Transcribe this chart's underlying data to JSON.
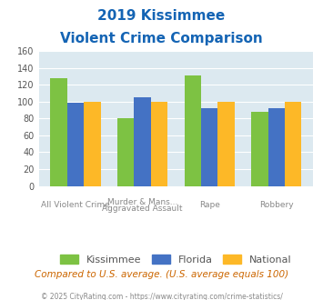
{
  "title_line1": "2019 Kissimmee",
  "title_line2": "Violent Crime Comparison",
  "cat_labels_top": [
    "",
    "Murder & Mans...",
    "",
    ""
  ],
  "cat_labels_bottom": [
    "All Violent Crime",
    "Aggravated Assault",
    "Rape",
    "Robbery"
  ],
  "kissimmee": [
    128,
    80,
    131,
    88
  ],
  "florida": [
    99,
    105,
    92,
    92
  ],
  "national": [
    100,
    100,
    100,
    100
  ],
  "color_kissimmee": "#7dc243",
  "color_florida": "#4472c4",
  "color_national": "#fdb827",
  "ylim": [
    0,
    160
  ],
  "yticks": [
    0,
    20,
    40,
    60,
    80,
    100,
    120,
    140,
    160
  ],
  "background_color": "#dce9f0",
  "title_color": "#1464b4",
  "subtitle_note": "Compared to U.S. average. (U.S. average equals 100)",
  "subtitle_note_color": "#cc6600",
  "footer": "© 2025 CityRating.com - https://www.cityrating.com/crime-statistics/",
  "footer_color": "#888888",
  "legend_labels": [
    "Kissimmee",
    "Florida",
    "National"
  ],
  "bar_width": 0.25
}
